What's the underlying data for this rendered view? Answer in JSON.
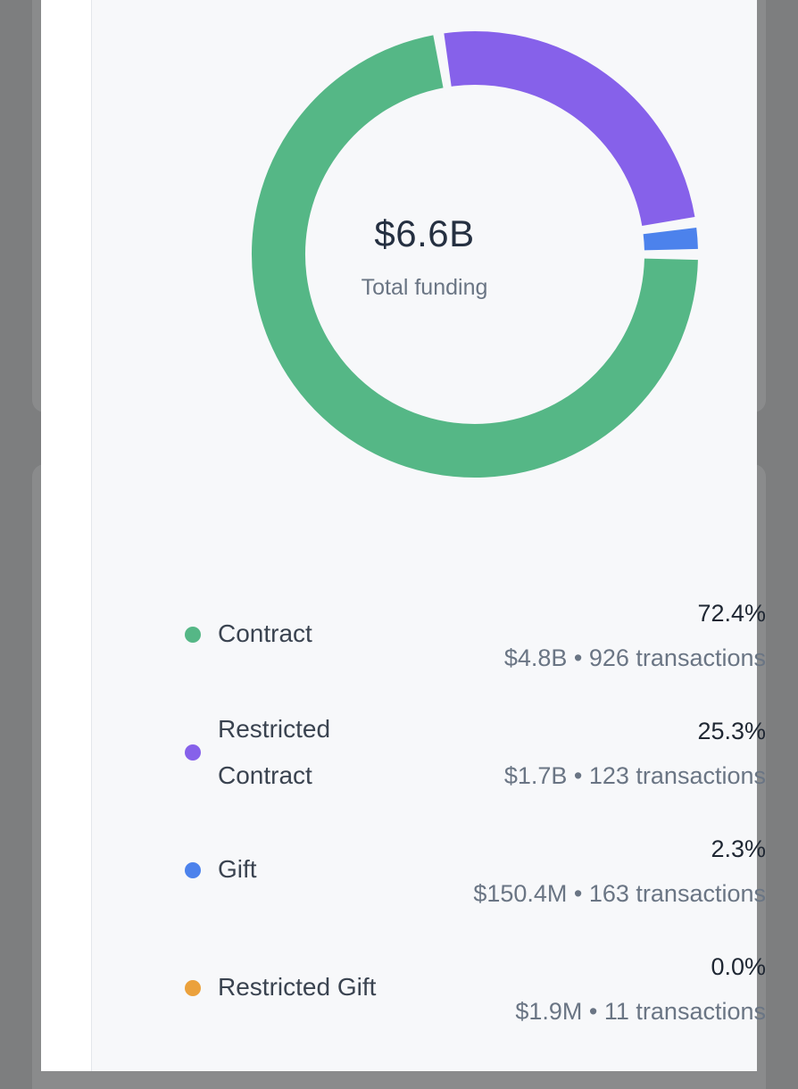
{
  "summary": {
    "total_value": "$6.6B",
    "total_caption": "Total funding"
  },
  "chart_data": {
    "type": "pie",
    "categories": [
      "Contract",
      "Restricted Contract",
      "Gift",
      "Restricted Gift"
    ],
    "values": [
      72.4,
      25.3,
      2.3,
      0.0
    ],
    "colors": [
      "#55b786",
      "#8661ea",
      "#4c82ec",
      "#eba13c"
    ]
  },
  "legend": [
    {
      "name": "Contract",
      "percent": "72.4%",
      "amount": "$4.8B",
      "separator": "•",
      "transactions": "926 transactions",
      "color": "#55b786"
    },
    {
      "name": "Restricted Contract",
      "percent": "25.3%",
      "amount": "$1.7B",
      "separator": "•",
      "transactions": "123 transactions",
      "color": "#8661ea"
    },
    {
      "name": "Gift",
      "percent": "2.3%",
      "amount": "$150.4M",
      "separator": "•",
      "transactions": "163 transactions",
      "color": "#4c82ec"
    },
    {
      "name": "Restricted Gift",
      "percent": "0.0%",
      "amount": "$1.9M",
      "separator": "•",
      "transactions": "11 transactions",
      "color": "#eba13c"
    }
  ]
}
